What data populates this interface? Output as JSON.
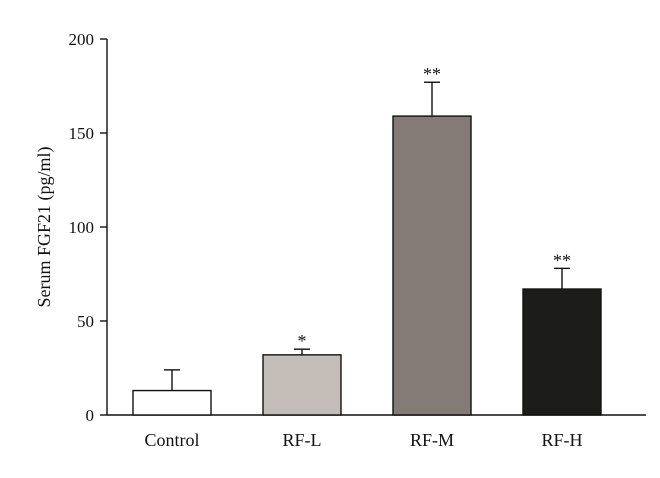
{
  "chart_data": {
    "type": "bar",
    "categories": [
      "Control",
      "RF-L",
      "RF-M",
      "RF-H"
    ],
    "values": [
      13,
      32,
      159,
      67
    ],
    "errors": [
      11,
      3,
      18,
      11
    ],
    "significance": [
      "",
      "*",
      "**",
      "**"
    ],
    "bar_colors": [
      "#ffffff",
      "#c4bcb6",
      "#857b76",
      "#1c1c1a"
    ],
    "title": "",
    "xlabel": "",
    "ylabel": "Serum FGF21 (pg/ml)",
    "ylim": [
      0,
      200
    ],
    "yticks": [
      0,
      50,
      100,
      150,
      200
    ],
    "grid": false,
    "legend": "none"
  }
}
